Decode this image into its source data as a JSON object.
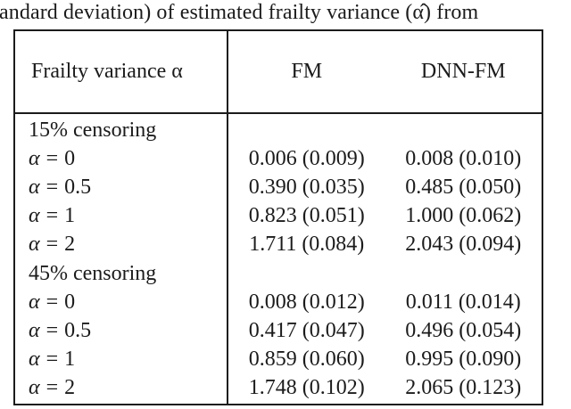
{
  "caption": "andard deviation) of estimated frailty variance (α̂) from",
  "colors": {
    "text": "#1b1b1b",
    "background": "#ffffff",
    "border": "#1b1b1b"
  },
  "table": {
    "header": {
      "col1": "Frailty variance α",
      "col2": "FM",
      "col3": "DNN-FM"
    },
    "rows": [
      {
        "type": "section",
        "label": "15% censoring",
        "fm": "",
        "dnn": ""
      },
      {
        "type": "data",
        "var": "α",
        "eq": "=",
        "val": "0",
        "fm": "0.006 (0.009)",
        "dnn": "0.008 (0.010)"
      },
      {
        "type": "data",
        "var": "α",
        "eq": "=",
        "val": "0.5",
        "fm": "0.390 (0.035)",
        "dnn": "0.485 (0.050)"
      },
      {
        "type": "data",
        "var": "α",
        "eq": "=",
        "val": "1",
        "fm": "0.823 (0.051)",
        "dnn": "1.000 (0.062)"
      },
      {
        "type": "data",
        "var": "α",
        "eq": "=",
        "val": "2",
        "fm": "1.711 (0.084)",
        "dnn": "2.043 (0.094)"
      },
      {
        "type": "section",
        "label": "45% censoring",
        "fm": "",
        "dnn": ""
      },
      {
        "type": "data",
        "var": "α",
        "eq": "=",
        "val": "0",
        "fm": "0.008 (0.012)",
        "dnn": "0.011 (0.014)"
      },
      {
        "type": "data",
        "var": "α",
        "eq": "=",
        "val": "0.5",
        "fm": "0.417 (0.047)",
        "dnn": "0.496 (0.054)"
      },
      {
        "type": "data",
        "var": "α",
        "eq": "=",
        "val": "1",
        "fm": "0.859 (0.060)",
        "dnn": "0.995 (0.090)"
      },
      {
        "type": "data",
        "var": "α",
        "eq": "=",
        "val": "2",
        "fm": "1.748 (0.102)",
        "dnn": "2.065 (0.123)"
      }
    ]
  }
}
